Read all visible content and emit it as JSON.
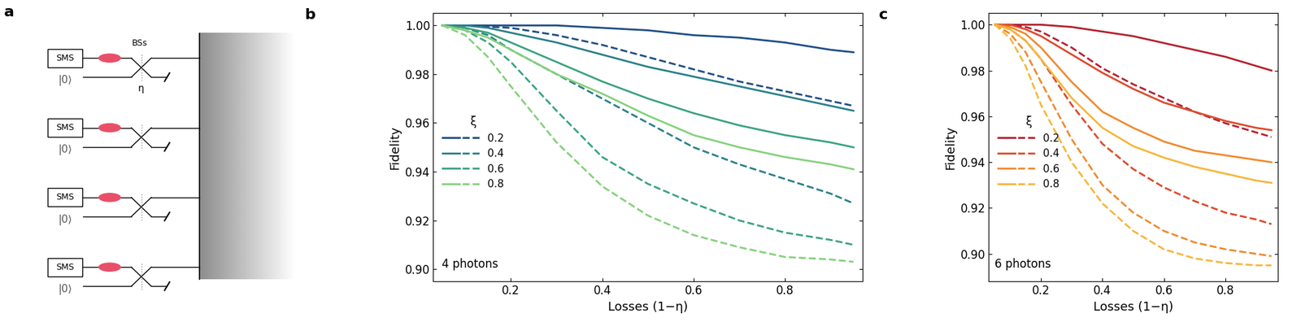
{
  "diagram": {
    "panel_label": "a",
    "beam_splitter_label": "BSs",
    "transmissivity": "η",
    "modes": [
      {
        "source": "SMS",
        "vacuum": "|0⟩"
      },
      {
        "source": "SMS",
        "vacuum": "|0⟩"
      },
      {
        "source": "SMS",
        "vacuum": "|0⟩"
      },
      {
        "source": "SMS",
        "vacuum": "|0⟩"
      }
    ]
  },
  "chart_data": [
    {
      "type": "line",
      "title": "b",
      "x_label": "Losses (1−η)",
      "y_label": "Fidelity",
      "annotations": [
        "4 photons"
      ],
      "legend": "center left",
      "legend_title": "ξ",
      "x": [
        0.05,
        0.1,
        0.15,
        0.2,
        0.3,
        0.4,
        0.5,
        0.6,
        0.7,
        0.8,
        0.9,
        0.95
      ],
      "xlim": [
        0.03,
        0.97
      ],
      "xticks": [
        0.2,
        0.4,
        0.6,
        0.8
      ],
      "ylim": [
        0.895,
        1.005
      ],
      "yticks": [
        {
          "value": 0.9,
          "label": "0.90"
        },
        {
          "value": 0.92,
          "label": "0.92"
        },
        {
          "value": 0.94,
          "label": "0.94"
        },
        {
          "value": 0.96,
          "label": "0.96"
        },
        {
          "value": 0.98,
          "label": "0.98"
        },
        {
          "value": 1.0,
          "label": "1.00"
        }
      ],
      "series": [
        {
          "name": "0.2",
          "color": "#1f4e86",
          "line_style": "solid",
          "values": [
            1.0,
            1.0,
            1.0,
            1.0,
            1.0,
            0.999,
            0.998,
            0.996,
            0.995,
            0.993,
            0.99,
            0.989
          ]
        },
        {
          "name": "0.2",
          "color": "#1f4e86",
          "line_style": "dashed",
          "values": [
            1.0,
            1.0,
            0.9995,
            0.999,
            0.996,
            0.992,
            0.987,
            0.982,
            0.977,
            0.973,
            0.969,
            0.967
          ]
        },
        {
          "name": "0.4",
          "color": "#2a8088",
          "line_style": "solid",
          "values": [
            1.0,
            1.0,
            0.999,
            0.997,
            0.993,
            0.988,
            0.983,
            0.979,
            0.975,
            0.971,
            0.967,
            0.965
          ]
        },
        {
          "name": "0.4",
          "color": "#2a8088",
          "line_style": "dashed",
          "values": [
            1.0,
            0.999,
            0.996,
            0.99,
            0.98,
            0.97,
            0.96,
            0.95,
            0.943,
            0.937,
            0.931,
            0.927
          ]
        },
        {
          "name": "0.6",
          "color": "#3aa37e",
          "line_style": "solid",
          "values": [
            1.0,
            0.999,
            0.997,
            0.993,
            0.985,
            0.977,
            0.97,
            0.964,
            0.959,
            0.955,
            0.952,
            0.95
          ]
        },
        {
          "name": "0.6",
          "color": "#3aa37e",
          "line_style": "dashed",
          "values": [
            1.0,
            0.998,
            0.993,
            0.985,
            0.965,
            0.946,
            0.935,
            0.927,
            0.92,
            0.915,
            0.912,
            0.91
          ]
        },
        {
          "name": "0.8",
          "color": "#85d17c",
          "line_style": "solid",
          "values": [
            1.0,
            0.998,
            0.995,
            0.99,
            0.98,
            0.972,
            0.963,
            0.955,
            0.95,
            0.946,
            0.943,
            0.941
          ]
        },
        {
          "name": "0.8",
          "color": "#85d17c",
          "line_style": "dashed",
          "values": [
            1.0,
            0.996,
            0.987,
            0.975,
            0.952,
            0.934,
            0.922,
            0.914,
            0.909,
            0.905,
            0.904,
            0.903
          ]
        }
      ]
    },
    {
      "type": "line",
      "title": "c",
      "x_label": "Losses (1−η)",
      "y_label": "Fidelity",
      "annotations": [
        "6 photons"
      ],
      "legend": "center left",
      "legend_title": "ξ",
      "x": [
        0.05,
        0.1,
        0.15,
        0.2,
        0.3,
        0.4,
        0.5,
        0.6,
        0.7,
        0.8,
        0.9,
        0.95
      ],
      "xlim": [
        0.03,
        0.97
      ],
      "xticks": [
        0.2,
        0.4,
        0.6,
        0.8
      ],
      "ylim": [
        0.888,
        1.005
      ],
      "yticks": [
        {
          "value": 0.9,
          "label": "0.90"
        },
        {
          "value": 0.92,
          "label": "0.92"
        },
        {
          "value": 0.94,
          "label": "0.94"
        },
        {
          "value": 0.96,
          "label": "0.96"
        },
        {
          "value": 0.98,
          "label": "0.98"
        },
        {
          "value": 1.0,
          "label": "1.00"
        }
      ],
      "series": [
        {
          "name": "0.2",
          "color": "#b5202e",
          "line_style": "solid",
          "values": [
            1.0,
            1.0,
            1.0,
            1.0,
            0.999,
            0.997,
            0.995,
            0.992,
            0.989,
            0.986,
            0.982,
            0.98
          ]
        },
        {
          "name": "0.2",
          "color": "#b5202e",
          "line_style": "dashed",
          "values": [
            1.0,
            1.0,
            0.999,
            0.997,
            0.99,
            0.981,
            0.974,
            0.968,
            0.962,
            0.957,
            0.953,
            0.951
          ]
        },
        {
          "name": "0.4",
          "color": "#dd4a2c",
          "line_style": "solid",
          "values": [
            1.0,
            1.0,
            0.998,
            0.995,
            0.987,
            0.979,
            0.972,
            0.966,
            0.962,
            0.958,
            0.955,
            0.954
          ]
        },
        {
          "name": "0.4",
          "color": "#dd4a2c",
          "line_style": "dashed",
          "values": [
            1.0,
            0.998,
            0.993,
            0.985,
            0.965,
            0.948,
            0.937,
            0.929,
            0.923,
            0.918,
            0.915,
            0.913
          ]
        },
        {
          "name": "0.6",
          "color": "#f08a2e",
          "line_style": "solid",
          "values": [
            1.0,
            0.999,
            0.996,
            0.99,
            0.975,
            0.962,
            0.955,
            0.949,
            0.945,
            0.943,
            0.941,
            0.94
          ]
        },
        {
          "name": "0.6",
          "color": "#f08a2e",
          "line_style": "dashed",
          "values": [
            1.0,
            0.996,
            0.988,
            0.975,
            0.95,
            0.93,
            0.918,
            0.91,
            0.905,
            0.902,
            0.9,
            0.899
          ]
        },
        {
          "name": "0.8",
          "color": "#f7b63a",
          "line_style": "solid",
          "values": [
            1.0,
            0.998,
            0.993,
            0.985,
            0.968,
            0.955,
            0.947,
            0.942,
            0.938,
            0.935,
            0.932,
            0.931
          ]
        },
        {
          "name": "0.8",
          "color": "#f7b63a",
          "line_style": "dashed",
          "values": [
            1.0,
            0.994,
            0.982,
            0.965,
            0.94,
            0.922,
            0.91,
            0.902,
            0.898,
            0.896,
            0.895,
            0.895
          ]
        }
      ]
    }
  ]
}
